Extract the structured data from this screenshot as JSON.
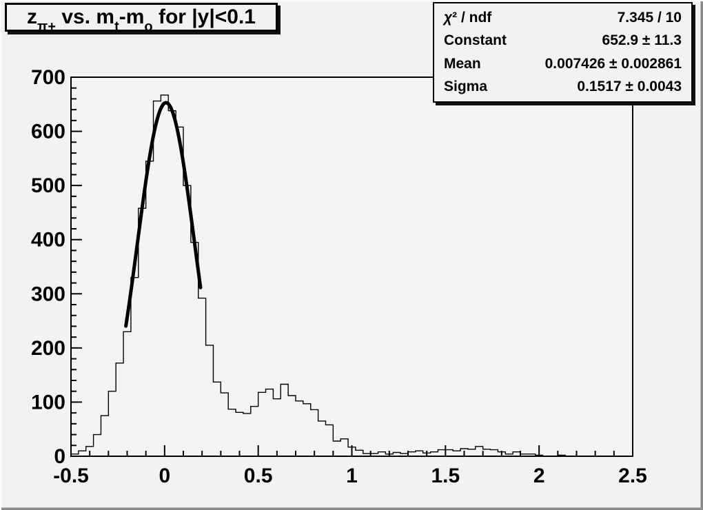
{
  "title": {
    "p1": "z",
    "s1": "π+",
    "p2": " vs. m",
    "s2": "t",
    "p3": "-m",
    "s3": "o",
    "p4": " for |y|<0.1"
  },
  "stats_box": {
    "rows": [
      {
        "label": "χ² / ndf",
        "value": "7.345 / 10"
      },
      {
        "label": "Constant",
        "value": "652.9 ± 11.3"
      },
      {
        "label": "Mean",
        "value": "0.007426 ± 0.002861"
      },
      {
        "label": "Sigma",
        "value": "0.1517 ± 0.0043"
      }
    ]
  },
  "chart_data": {
    "type": "bar",
    "style": "step-outline-histogram",
    "title": "z_{π+} vs. m_t-m_o for |y|<0.1",
    "xlabel": "",
    "ylabel": "",
    "x_range": [
      -0.5,
      2.5
    ],
    "y_range": [
      0,
      700
    ],
    "grid": false,
    "bin_start": -0.5,
    "bin_width": 0.04,
    "counts": [
      4,
      10,
      18,
      40,
      75,
      120,
      172,
      230,
      330,
      458,
      545,
      656,
      667,
      638,
      608,
      500,
      395,
      292,
      205,
      137,
      117,
      87,
      81,
      79,
      92,
      118,
      124,
      106,
      133,
      112,
      102,
      97,
      86,
      65,
      58,
      28,
      32,
      17,
      11,
      5,
      5,
      8,
      4,
      7,
      5,
      8,
      10,
      6,
      8,
      12,
      12,
      10,
      14,
      13,
      18,
      13,
      12,
      8,
      4,
      8,
      4,
      4,
      2,
      0,
      0,
      2,
      0,
      0,
      0,
      0,
      0,
      0,
      0,
      0,
      0
    ],
    "fit": {
      "shape": "gaussian",
      "constant": 652.9,
      "mean": 0.007426,
      "sigma": 0.1517,
      "draw_range": [
        -0.207,
        0.192
      ],
      "color": "#000000",
      "line_width": 5
    },
    "x_ticks": {
      "values": [
        -0.5,
        0,
        0.5,
        1,
        1.5,
        2,
        2.5
      ],
      "labels": [
        "-0.5",
        "0",
        "0.5",
        "1",
        "1.5",
        "2",
        "2.5"
      ],
      "minor_step": 0.1
    },
    "y_ticks": {
      "values": [
        0,
        100,
        200,
        300,
        400,
        500,
        600,
        700
      ],
      "labels": [
        "0",
        "100",
        "200",
        "300",
        "400",
        "500",
        "600",
        "700"
      ],
      "minor_step": 20
    },
    "line_color": "#000000",
    "background": "#f2f2f2"
  }
}
